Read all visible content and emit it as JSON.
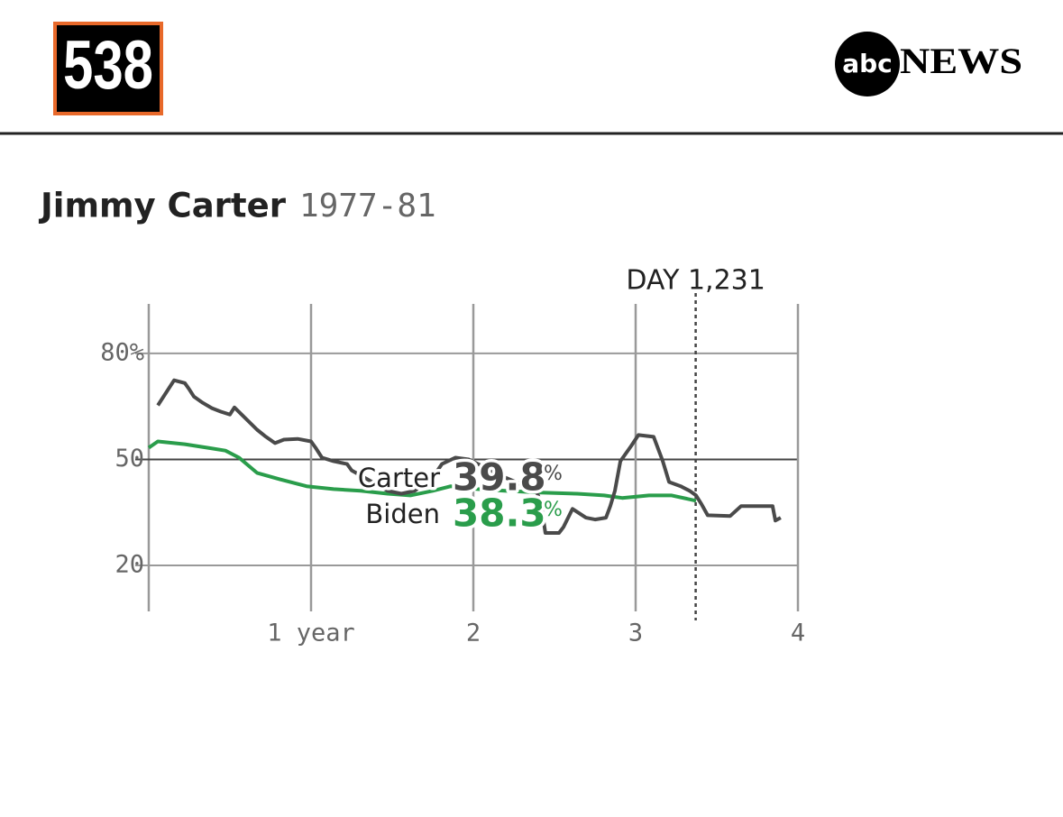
{
  "header": {
    "logo": "538",
    "brand_mark": "abc",
    "brand_name": "NEWS"
  },
  "chart_data": {
    "type": "line",
    "title": "Jimmy Carter",
    "subtitle": "1977-81",
    "xlim": [
      0,
      4
    ],
    "ylim": [
      7,
      94
    ],
    "xticks": [
      {
        "value": 1,
        "label": "1 year"
      },
      2,
      3,
      4
    ],
    "yticks": [
      20,
      50,
      {
        "value": 80,
        "label": "80%"
      }
    ],
    "grid": true,
    "marker": {
      "value": 3.37,
      "label": "DAY 1,231"
    },
    "value_unit": "%",
    "series": [
      {
        "name": "Carter",
        "color": "#4a4a4a",
        "current_value": 39.8,
        "x": [
          0.056,
          0.156,
          0.222,
          0.25,
          0.278,
          0.333,
          0.389,
          0.444,
          0.5,
          0.528,
          0.572,
          0.667,
          0.722,
          0.778,
          0.833,
          0.917,
          1.0,
          1.028,
          1.067,
          1.139,
          1.222,
          1.25,
          1.472,
          1.556,
          1.639,
          1.75,
          1.806,
          1.889,
          1.972,
          2.194,
          2.389,
          2.417,
          2.444,
          2.528,
          2.556,
          2.611,
          2.694,
          2.75,
          2.817,
          2.844,
          2.872,
          2.906,
          2.972,
          3.017,
          3.111,
          3.167,
          3.206,
          3.278,
          3.333,
          3.372,
          3.406,
          3.444,
          3.583,
          3.65,
          3.844,
          3.861,
          3.894
        ],
        "values": [
          65.3,
          72.4,
          71.6,
          69.8,
          67.8,
          66.0,
          64.5,
          63.5,
          62.7,
          64.7,
          62.7,
          58.4,
          56.4,
          54.6,
          55.6,
          55.8,
          55.1,
          53.3,
          50.5,
          49.5,
          48.7,
          46.9,
          41.1,
          40.3,
          41.1,
          44.9,
          48.7,
          50.5,
          50.0,
          44.9,
          41.1,
          37.3,
          29.2,
          29.2,
          30.9,
          36.0,
          33.5,
          33.0,
          33.5,
          36.8,
          41.1,
          49.5,
          53.8,
          56.9,
          56.4,
          49.5,
          43.6,
          42.4,
          41.1,
          39.8,
          37.3,
          34.2,
          34.0,
          36.8,
          36.8,
          32.7,
          33.5
        ]
      },
      {
        "name": "Biden",
        "color": "#2a9d4b",
        "current_value": 38.3,
        "x": [
          0,
          0.056,
          0.222,
          0.361,
          0.472,
          0.556,
          0.667,
          0.806,
          0.972,
          1.139,
          1.306,
          1.472,
          1.611,
          1.75,
          1.861,
          2.028,
          2.194,
          2.417,
          2.639,
          2.806,
          2.917,
          3.083,
          3.222,
          3.372
        ],
        "values": [
          53.3,
          55.1,
          54.3,
          53.3,
          52.5,
          50.5,
          46.2,
          44.4,
          42.4,
          41.6,
          41.1,
          40.3,
          39.8,
          41.1,
          42.4,
          41.6,
          41.1,
          40.6,
          40.3,
          39.8,
          39.1,
          39.8,
          39.8,
          38.3
        ]
      }
    ]
  }
}
